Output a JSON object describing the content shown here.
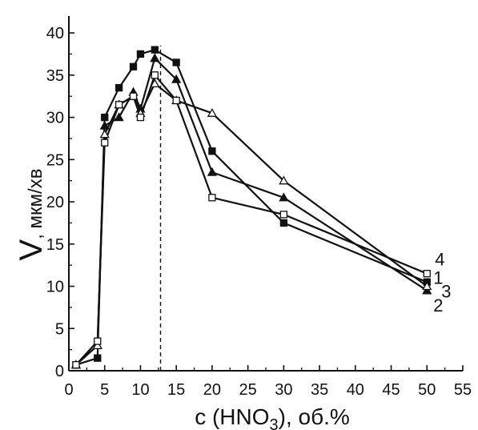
{
  "chart_data": {
    "type": "line",
    "xlabel_parts": [
      "c (HNO",
      "3",
      "), об.%"
    ],
    "ylabel_main": "V",
    "ylabel_unit": ", мкм/хв",
    "xlim": [
      0,
      55
    ],
    "ylim": [
      0,
      42
    ],
    "xticks": [
      0,
      5,
      10,
      15,
      20,
      25,
      30,
      35,
      40,
      45,
      50,
      55
    ],
    "yticks": [
      0,
      5,
      10,
      15,
      20,
      25,
      30,
      35,
      40
    ],
    "grid": false,
    "reference_line_x": 12.8,
    "series": [
      {
        "name": "1",
        "marker": "filled-square",
        "x": [
          1,
          4,
          5,
          7,
          9,
          10,
          12,
          15,
          20,
          30,
          50
        ],
        "y": [
          0.7,
          1.5,
          30.0,
          33.5,
          36.0,
          37.5,
          38.0,
          36.5,
          26.0,
          17.5,
          10.5
        ]
      },
      {
        "name": "2",
        "marker": "filled-triangle",
        "x": [
          1,
          4,
          5,
          7,
          9,
          10,
          12,
          15,
          20,
          30,
          50
        ],
        "y": [
          0.7,
          3.0,
          29.0,
          30.0,
          33.0,
          31.0,
          37.0,
          34.5,
          23.5,
          20.5,
          9.5
        ]
      },
      {
        "name": "3",
        "marker": "open-triangle",
        "x": [
          1,
          4,
          5,
          7,
          9,
          10,
          12,
          15,
          20,
          30,
          50
        ],
        "y": [
          0.7,
          3.0,
          28.0,
          31.5,
          32.5,
          30.5,
          34.0,
          32.0,
          30.5,
          22.5,
          10.0
        ]
      },
      {
        "name": "4",
        "marker": "open-square",
        "x": [
          1,
          4,
          5,
          7,
          9,
          10,
          12,
          15,
          20,
          30,
          50
        ],
        "y": [
          0.7,
          3.5,
          27.0,
          31.5,
          32.5,
          30.0,
          35.0,
          32.0,
          20.5,
          18.5,
          11.5
        ]
      }
    ]
  }
}
